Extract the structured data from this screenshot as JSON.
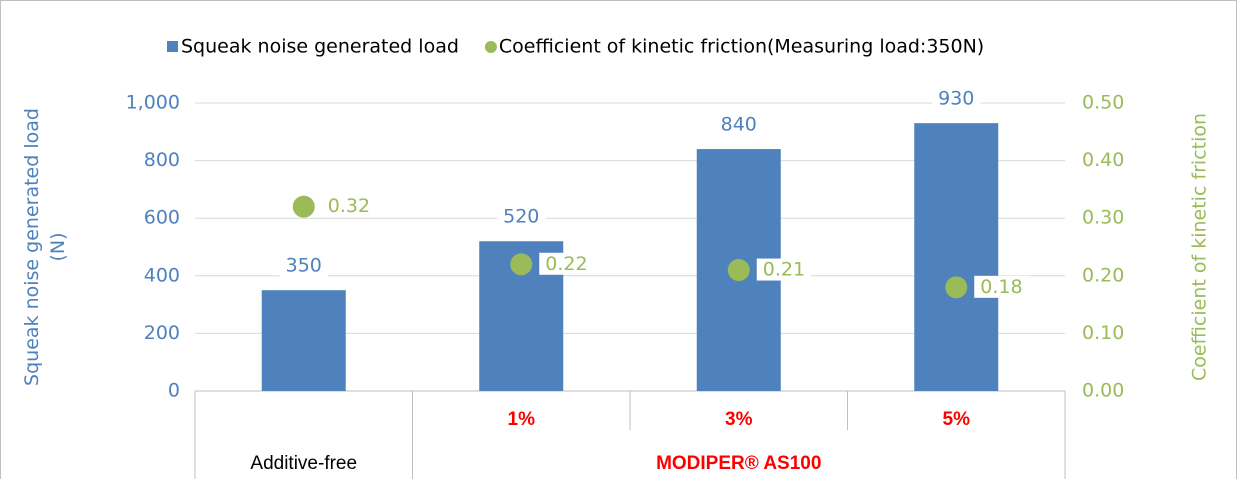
{
  "chart_data": {
    "type": "bar",
    "categories": [
      null,
      "1%",
      "3%",
      "5%"
    ],
    "groups": [
      {
        "label": "Additive-free",
        "count": 1,
        "color": "#000000"
      },
      {
        "label": "MODIPER® AS100",
        "count": 3,
        "color": "#ff0000"
      }
    ],
    "series": [
      {
        "name": "Squeak noise generated load",
        "type": "bar",
        "color": "#4f81bd",
        "values": [
          350,
          520,
          840,
          930
        ]
      },
      {
        "name": "Coefficient of kinetic friction(Measuring load:350N)",
        "type": "scatter",
        "axis": "y2",
        "color": "#9bbb59",
        "values": [
          0.32,
          0.22,
          0.21,
          0.18
        ]
      }
    ],
    "ylabel": [
      "Squeak noise generated load",
      "(N)"
    ],
    "y2label": "Coefficient of kinetic friction",
    "ylim": [
      0,
      1000
    ],
    "yticks": [
      0,
      200,
      400,
      600,
      800,
      {
        "value": 1000,
        "label": "1,000"
      }
    ],
    "y2lim": [
      0,
      0.5
    ],
    "y2ticks": [
      {
        "value": 0,
        "label": "0.00"
      },
      {
        "value": 0.1,
        "label": "0.10"
      },
      {
        "value": 0.2,
        "label": "0.20"
      },
      {
        "value": 0.3,
        "label": "0.30"
      },
      {
        "value": 0.4,
        "label": "0.40"
      },
      {
        "value": 0.5,
        "label": "0.50"
      }
    ],
    "grid": true,
    "legend": "top"
  }
}
